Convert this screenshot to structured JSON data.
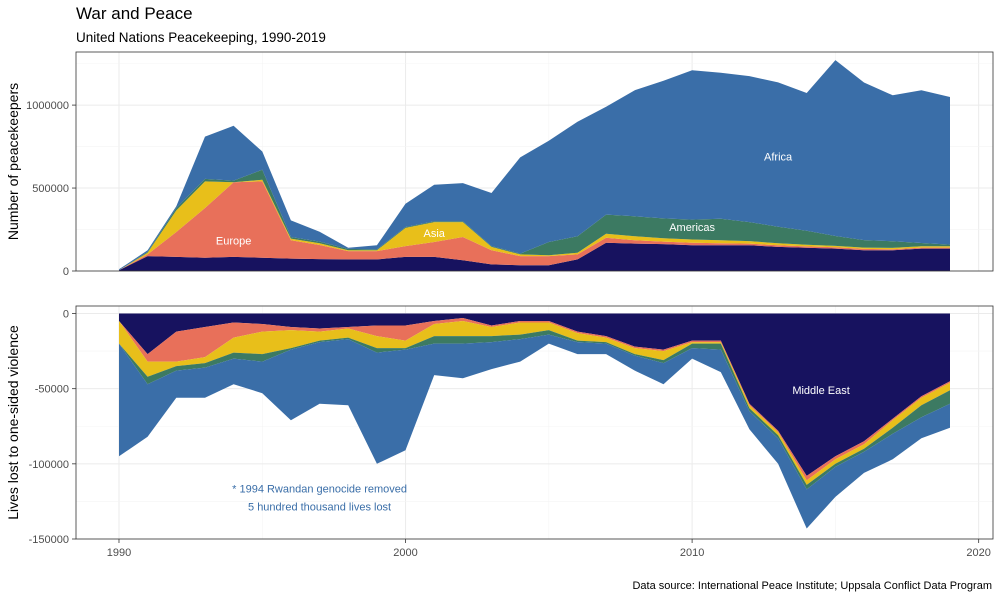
{
  "title": "War and Peace",
  "subtitle": "United Nations Peacekeeping, 1990-2019",
  "caption": "Data source: International Peace Institute; Uppsala Conflict Data Program",
  "colors": {
    "Middle East": "#17125f",
    "Europe": "#e8705a",
    "Asia": "#e8bf1a",
    "Americas": "#3c7a62",
    "Africa": "#3a6ea8",
    "note": "#3a6ea8"
  },
  "chart_data": [
    {
      "type": "area",
      "stacked": true,
      "ylabel": "Number of peacekeepers",
      "xlim": [
        1990,
        2019
      ],
      "ylim": [
        0,
        1320000
      ],
      "yticks": [
        0,
        500000,
        1000000
      ],
      "ytick_labels": [
        "0",
        "500000",
        "1000000"
      ],
      "grid": true,
      "x": [
        1990,
        1991,
        1992,
        1993,
        1994,
        1995,
        1996,
        1997,
        1998,
        1999,
        2000,
        2001,
        2002,
        2003,
        2004,
        2005,
        2006,
        2007,
        2008,
        2009,
        2010,
        2011,
        2012,
        2013,
        2014,
        2015,
        2016,
        2017,
        2018,
        2019
      ],
      "series": [
        {
          "name": "Middle East",
          "values": [
            5000,
            90000,
            85000,
            80000,
            85000,
            80000,
            75000,
            72000,
            70000,
            70000,
            85000,
            85000,
            65000,
            40000,
            35000,
            35000,
            70000,
            170000,
            165000,
            162000,
            155000,
            155000,
            155000,
            145000,
            140000,
            135000,
            125000,
            125000,
            135000,
            135000
          ]
        },
        {
          "name": "Europe",
          "values": [
            0,
            10000,
            150000,
            300000,
            450000,
            460000,
            110000,
            85000,
            50000,
            50000,
            65000,
            90000,
            140000,
            85000,
            55000,
            55000,
            30000,
            30000,
            20000,
            15000,
            15000,
            12000,
            10000,
            10000,
            8000,
            8000,
            8000,
            6000,
            6000,
            6000
          ]
        },
        {
          "name": "Asia",
          "values": [
            0,
            10000,
            130000,
            160000,
            0,
            10000,
            10000,
            10000,
            5000,
            5000,
            110000,
            120000,
            90000,
            20000,
            10000,
            5000,
            10000,
            25000,
            25000,
            20000,
            20000,
            18000,
            15000,
            12000,
            10000,
            8000,
            8000,
            8000,
            8000,
            8000
          ]
        },
        {
          "name": "Americas",
          "values": [
            0,
            5000,
            15000,
            15000,
            10000,
            60000,
            10000,
            10000,
            8000,
            5000,
            5000,
            5000,
            5000,
            5000,
            5000,
            80000,
            100000,
            115000,
            120000,
            120000,
            120000,
            130000,
            115000,
            100000,
            85000,
            60000,
            45000,
            40000,
            20000,
            10000
          ]
        },
        {
          "name": "Africa",
          "values": [
            5000,
            10000,
            10000,
            255000,
            330000,
            110000,
            100000,
            60000,
            7000,
            25000,
            140000,
            220000,
            230000,
            320000,
            580000,
            610000,
            690000,
            650000,
            760000,
            830000,
            900000,
            880000,
            880000,
            870000,
            830000,
            1060000,
            950000,
            880000,
            920000,
            890000
          ]
        }
      ],
      "annotations": [
        {
          "text": "Europe",
          "x": 1994,
          "y": 185000,
          "color": "#ffffff"
        },
        {
          "text": "Asia",
          "x": 2001,
          "y": 230000,
          "color": "#ffffff"
        },
        {
          "text": "Americas",
          "x": 2010,
          "y": 265000,
          "color": "#ffffff"
        },
        {
          "text": "Africa",
          "x": 2013,
          "y": 690000,
          "color": "#ffffff"
        }
      ]
    },
    {
      "type": "area",
      "stacked": true,
      "ylabel": "Lives lost to one-sided violence",
      "xlabel": "",
      "xlim": [
        1990,
        2019
      ],
      "ylim": [
        -150000,
        5000
      ],
      "yticks": [
        0,
        -50000,
        -100000,
        -150000
      ],
      "ytick_labels": [
        "0",
        "-50000",
        "-100000",
        "-150000"
      ],
      "xticks": [
        1990,
        2000,
        2010,
        2020
      ],
      "xtick_labels": [
        "1990",
        "2000",
        "2010",
        "2020"
      ],
      "grid": true,
      "x": [
        1990,
        1991,
        1992,
        1993,
        1994,
        1995,
        1996,
        1997,
        1998,
        1999,
        2000,
        2001,
        2002,
        2003,
        2004,
        2005,
        2006,
        2007,
        2008,
        2009,
        2010,
        2011,
        2012,
        2013,
        2014,
        2015,
        2016,
        2017,
        2018,
        2019
      ],
      "series": [
        {
          "name": "Middle East",
          "values": [
            -5000,
            -27000,
            -12000,
            -9000,
            -6000,
            -7000,
            -9000,
            -10000,
            -9000,
            -8000,
            -8000,
            -5000,
            -3000,
            -8000,
            -5000,
            -5000,
            -12000,
            -15000,
            -22000,
            -24000,
            -18000,
            -18000,
            -60000,
            -78000,
            -108000,
            -95000,
            -85000,
            -70000,
            -55000,
            -45000
          ]
        },
        {
          "name": "Europe",
          "values": [
            0,
            -5000,
            -20000,
            -20000,
            -10000,
            -5000,
            -2000,
            -2000,
            -1000,
            -7000,
            -10000,
            -2000,
            -2000,
            -1000,
            -1000,
            -1000,
            -1000,
            -1000,
            -1000,
            -1000,
            -1000,
            -1000,
            -1000,
            -1000,
            -3000,
            -2000,
            -2000,
            -1000,
            -1000,
            -1000
          ]
        },
        {
          "name": "Asia",
          "values": [
            -15000,
            -10000,
            -3000,
            -4000,
            -10000,
            -15000,
            -12000,
            -6000,
            -6000,
            -8000,
            -5000,
            -8000,
            -10000,
            -6000,
            -8000,
            -5000,
            -5000,
            -3000,
            -4000,
            -6000,
            -1000,
            -1000,
            -2000,
            -2000,
            -3000,
            -3000,
            -3000,
            -5000,
            -5000,
            -5000
          ]
        },
        {
          "name": "Americas",
          "values": [
            0,
            -5000,
            -3000,
            -3000,
            -4000,
            -5000,
            -1000,
            -1000,
            -1000,
            -3000,
            -1000,
            -5000,
            -5000,
            -4000,
            -3000,
            -3000,
            -1000,
            -1000,
            -1000,
            -2000,
            -3000,
            -4000,
            -2000,
            -2000,
            -3000,
            -2000,
            -2000,
            -4000,
            -8000,
            -9000
          ]
        },
        {
          "name": "Africa",
          "values": [
            -75000,
            -35000,
            -18000,
            -20000,
            -17000,
            -21000,
            -47000,
            -41000,
            -44000,
            -74000,
            -67000,
            -21000,
            -23000,
            -18000,
            -15000,
            -6000,
            -8000,
            -7000,
            -10000,
            -14000,
            -7000,
            -15000,
            -12000,
            -17000,
            -26000,
            -20000,
            -14000,
            -17000,
            -14000,
            -16000
          ]
        }
      ],
      "annotations": [
        {
          "text": "Middle East",
          "x": 2014.5,
          "y": -51000,
          "color": "#ffffff"
        }
      ],
      "notes": [
        "* 1994 Rwandan genocide removed",
        "5 hundred thousand lives lost"
      ]
    }
  ]
}
